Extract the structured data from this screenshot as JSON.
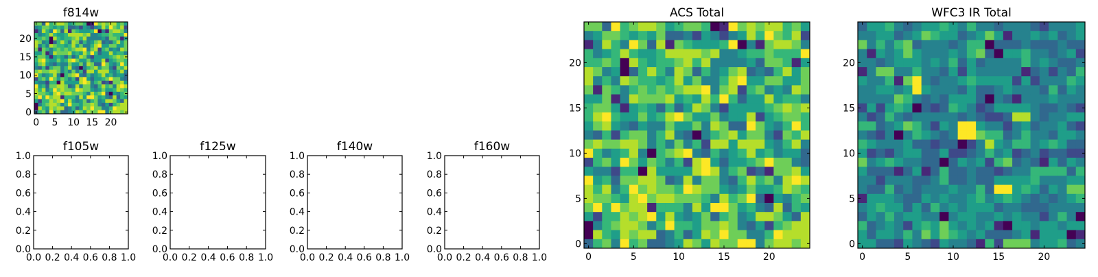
{
  "colormap": [
    "#440154",
    "#482878",
    "#3e4989",
    "#31688e",
    "#26828e",
    "#1f9e89",
    "#35b779",
    "#6ece58",
    "#b5de2b",
    "#fde725"
  ],
  "chart_data": [
    {
      "type": "heatmap",
      "title": "f814w",
      "xlim": [
        -0.5,
        24.5
      ],
      "ylim": [
        -0.5,
        24.5
      ],
      "xticks": [
        0,
        5,
        10,
        15,
        20
      ],
      "xtick_labels": [
        "0",
        "5",
        "10",
        "15",
        "20"
      ],
      "yticks": [
        0,
        5,
        10,
        15,
        20
      ],
      "ytick_labels": [
        "0",
        "5",
        "10",
        "15",
        "20"
      ],
      "value_scale": "0-9 (relative, viridis)",
      "z_rows_top_to_bottom": [
        "7739678875677601978788675",
        "4577656573342542458697682",
        "1486497381765556904178874",
        "6456865568888784456676669",
        "6676086566786844445377615",
        "8745036864873645783436857",
        "8464876656857446895577557",
        "7176467676788947826745487",
        "5571487778565869635585664",
        "6775156536358742555567878",
        "6896557568975574558256776",
        "5785435447557487339754696",
        "4362677468430467857742768",
        "7877887464746288588854684",
        "9645684067894364568564553",
        "2675975764628953556797743",
        "5442660855558984672317785",
        "9563778873484774368674898",
        "8684697877698775457556876",
        "8776589788777648679305467",
        "7969788166648599756438365",
        "5266878958545736745887538",
        "0467887469665778743526788",
        "0865878834635879774469888",
        "3674967334587587799478878"
      ]
    },
    {
      "type": "empty",
      "title": "f105w",
      "xlim": [
        0,
        1
      ],
      "ylim": [
        0,
        1
      ],
      "xticks": [
        0,
        0.2,
        0.4,
        0.6,
        0.8,
        1.0
      ],
      "xtick_labels": [
        "0.0",
        "0.2",
        "0.4",
        "0.6",
        "0.8",
        "1.0"
      ],
      "yticks": [
        0,
        0.2,
        0.4,
        0.6,
        0.8,
        1.0
      ],
      "ytick_labels": [
        "0.0",
        "0.2",
        "0.4",
        "0.6",
        "0.8",
        "1.0"
      ]
    },
    {
      "type": "empty",
      "title": "f125w",
      "xlim": [
        0,
        1
      ],
      "ylim": [
        0,
        1
      ],
      "xticks": [
        0,
        0.2,
        0.4,
        0.6,
        0.8,
        1.0
      ],
      "xtick_labels": [
        "0.0",
        "0.2",
        "0.4",
        "0.6",
        "0.8",
        "1.0"
      ],
      "yticks": [
        0,
        0.2,
        0.4,
        0.6,
        0.8,
        1.0
      ],
      "ytick_labels": [
        "0.0",
        "0.2",
        "0.4",
        "0.6",
        "0.8",
        "1.0"
      ]
    },
    {
      "type": "empty",
      "title": "f140w",
      "xlim": [
        0,
        1
      ],
      "ylim": [
        0,
        1
      ],
      "xticks": [
        0,
        0.2,
        0.4,
        0.6,
        0.8,
        1.0
      ],
      "xtick_labels": [
        "0.0",
        "0.2",
        "0.4",
        "0.6",
        "0.8",
        "1.0"
      ],
      "yticks": [
        0,
        0.2,
        0.4,
        0.6,
        0.8,
        1.0
      ],
      "ytick_labels": [
        "0.0",
        "0.2",
        "0.4",
        "0.6",
        "0.8",
        "1.0"
      ]
    },
    {
      "type": "empty",
      "title": "f160w",
      "xlim": [
        0,
        1
      ],
      "ylim": [
        0,
        1
      ],
      "xticks": [
        0,
        0.2,
        0.4,
        0.6,
        0.8,
        1.0
      ],
      "xtick_labels": [
        "0.0",
        "0.2",
        "0.4",
        "0.6",
        "0.8",
        "1.0"
      ],
      "yticks": [
        0,
        0.2,
        0.4,
        0.6,
        0.8,
        1.0
      ],
      "ytick_labels": [
        "0.0",
        "0.2",
        "0.4",
        "0.6",
        "0.8",
        "1.0"
      ]
    },
    {
      "type": "heatmap",
      "title": "ACS Total",
      "xlim": [
        -0.5,
        24.5
      ],
      "ylim": [
        -0.5,
        24.5
      ],
      "xticks": [
        0,
        5,
        10,
        15,
        20
      ],
      "xtick_labels": [
        "0",
        "5",
        "10",
        "15",
        "20"
      ],
      "yticks": [
        0,
        5,
        10,
        15,
        20
      ],
      "ytick_labels": [
        "0",
        "5",
        "10",
        "15",
        "20"
      ],
      "value_scale": "0-9 (relative, viridis)",
      "z_rows_top_to_bottom": [
        "7739678875677601978788675",
        "4577656573342542458697682",
        "1486497381765556904178874",
        "6456865568888784456676669",
        "6676086566786844445377615",
        "8745036864873645783436857",
        "8464876656857446895577557",
        "7176467676788947826745487",
        "5571487778565869635585664",
        "6775156536358742555567878",
        "6896557568975574558256776",
        "5785435447557487339754696",
        "4362677468430467857742768",
        "7877887464746288588854684",
        "9645684067894364568564553",
        "2675975764628953556797743",
        "5442660855558984672317785",
        "9563778873484774368674898",
        "8684697877698775457556876",
        "8776589788777648679305467",
        "7969788166648599756438365",
        "5266878958545736745887538",
        "0467887469665778743526788",
        "0865878834635879774469888",
        "3674967334587587799478878"
      ]
    },
    {
      "type": "heatmap",
      "title": "WFC3 IR Total",
      "xlim": [
        -0.5,
        24.5
      ],
      "ylim": [
        -0.5,
        24.5
      ],
      "xticks": [
        0,
        5,
        10,
        15,
        20
      ],
      "xtick_labels": [
        "0",
        "5",
        "10",
        "15",
        "20"
      ],
      "yticks": [
        0,
        5,
        10,
        15,
        20
      ],
      "ytick_labels": [
        "0",
        "5",
        "10",
        "15",
        "20"
      ],
      "value_scale": "0-9 (relative, viridis)",
      "z_rows_top_to_bottom": [
        "3556434556546443444324445",
        "4455345765534575144545345",
        "7464673444346603334333433",
        "4154575444546730556443452",
        "4434555454635344446454334",
        "1477446443525444441342436",
        "5446179434456555525244465",
        "4455459544435334544436354",
        "4444764343555304314445444",
        "2525650323654235555433432",
        "4236434444434322388434455",
        "6634576425499544245344532",
        "4324046543499766346443554",
        "6544453323302485466456533",
        "5232455335223464523423322",
        "7456544330354526734315354",
        "5333135136334332344666636",
        "4424443346334335555644455",
        "4336343444544639956535477",
        "1555433545445645654343456",
        "4565535364545553443334444",
        "3546455440455445454424640",
        "6345425657545451055455455",
        "5355464757654533345155501",
        "5533254325443162777455634"
      ]
    }
  ]
}
